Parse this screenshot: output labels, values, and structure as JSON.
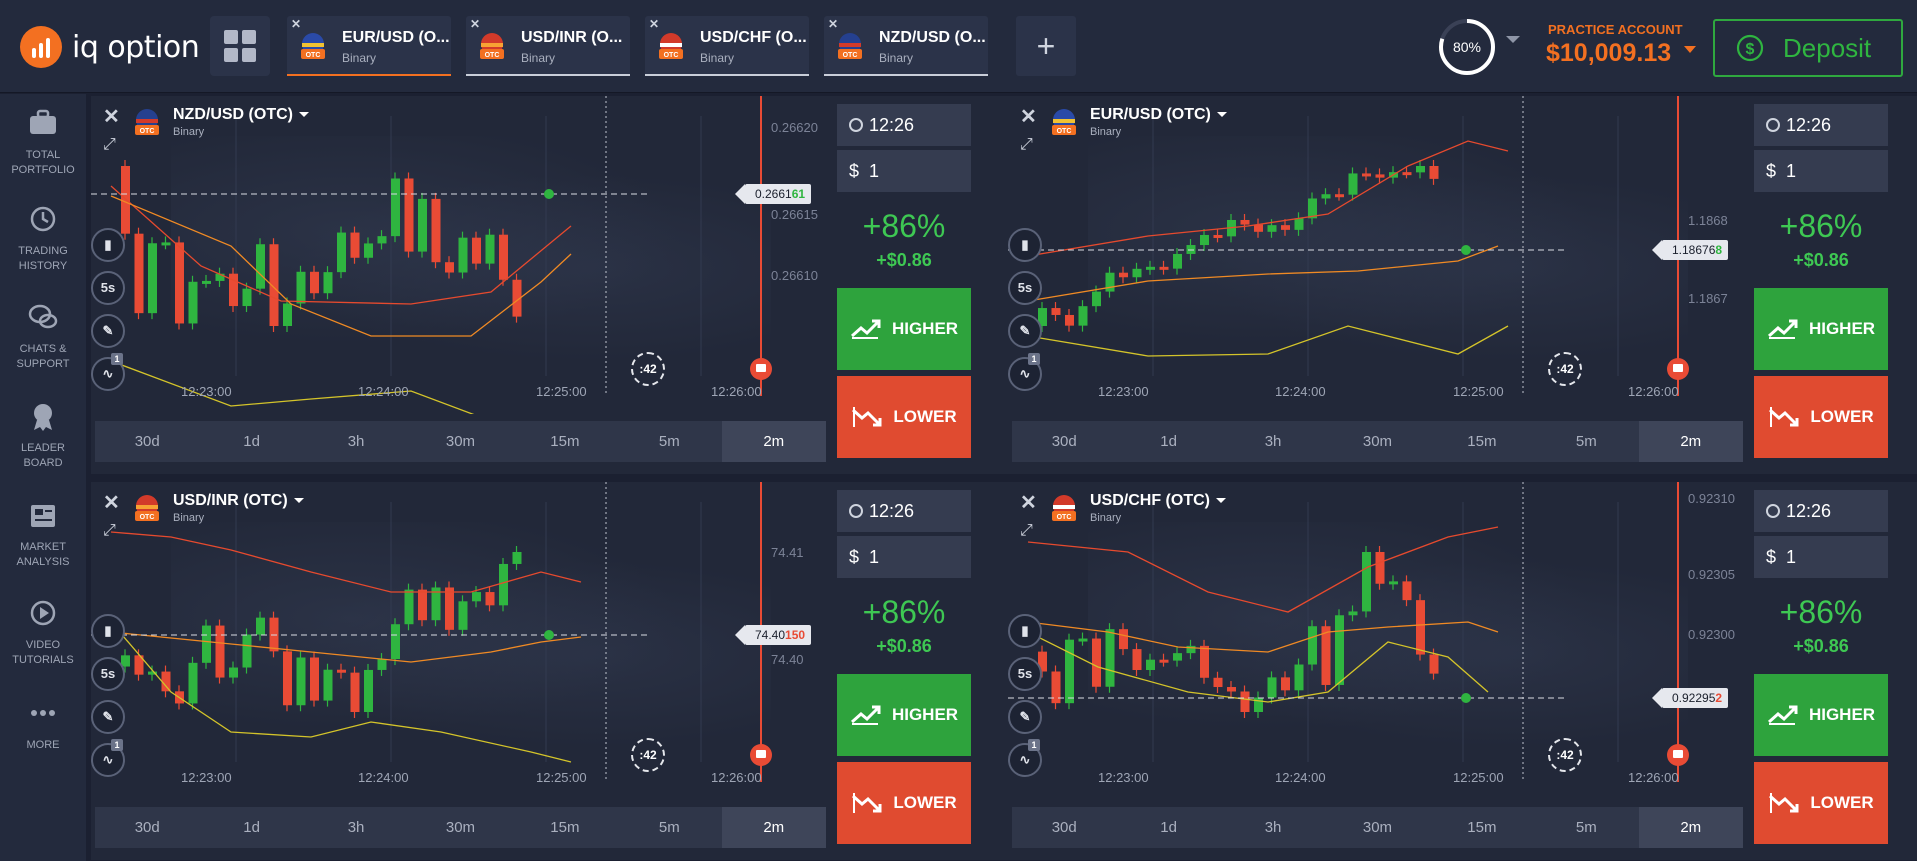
{
  "brand": {
    "name": "iq option"
  },
  "tabs": [
    {
      "title": "EUR/USD (O...",
      "type": "Binary",
      "active": true
    },
    {
      "title": "USD/INR (O...",
      "type": "Binary",
      "active": false
    },
    {
      "title": "USD/CHF (O...",
      "type": "Binary",
      "active": false
    },
    {
      "title": "NZD/USD (O...",
      "type": "Binary",
      "active": false
    }
  ],
  "header": {
    "gauge_value": "80%",
    "account_label": "PRACTICE ACCOUNT",
    "balance": "$10,009.13",
    "deposit_label": "Deposit"
  },
  "sidebar": [
    {
      "line1": "TOTAL",
      "line2": "PORTFOLIO",
      "icon": "briefcase-icon"
    },
    {
      "line1": "TRADING",
      "line2": "HISTORY",
      "icon": "history-icon"
    },
    {
      "line1": "CHATS &",
      "line2": "SUPPORT",
      "icon": "chat-icon"
    },
    {
      "line1": "LEADER",
      "line2": "BOARD",
      "icon": "medal-icon"
    },
    {
      "line1": "MARKET",
      "line2": "ANALYSIS",
      "icon": "newspaper-icon"
    },
    {
      "line1": "VIDEO",
      "line2": "TUTORIALS",
      "icon": "play-icon"
    },
    {
      "line1": "MORE",
      "line2": "",
      "icon": "dots-icon"
    }
  ],
  "timeframes": [
    "30d",
    "1d",
    "3h",
    "30m",
    "15m",
    "5m",
    "2m"
  ],
  "panels": [
    {
      "asset": "NZD/USD (OTC)",
      "type": "Binary",
      "price_main": "0.2661",
      "price_tail": "61",
      "tail_color": "g",
      "y_labels": [
        "0.26620",
        "0.26615",
        "0.26610"
      ],
      "x_labels": [
        "12:23:00",
        "12:24:00",
        "12:25:00",
        "12:26:00"
      ],
      "timer": ":42",
      "expiry": "12:26",
      "amount": "1",
      "profit_pct": "+86%",
      "profit_amt": "+$0.86",
      "higher": "HIGHER",
      "lower": "LOWER",
      "active_tf": "2m",
      "candle_tool": "5s",
      "tool_badge": "1"
    },
    {
      "asset": "EUR/USD (OTC)",
      "type": "Binary",
      "price_main": "1.18676",
      "price_tail": "8",
      "tail_color": "g",
      "y_labels": [
        "1.1868",
        "1.1867"
      ],
      "x_labels": [
        "12:23:00",
        "12:24:00",
        "12:25:00",
        "12:26:00"
      ],
      "timer": ":42",
      "expiry": "12:26",
      "amount": "1",
      "profit_pct": "+86%",
      "profit_amt": "+$0.86",
      "higher": "HIGHER",
      "lower": "LOWER",
      "active_tf": "2m",
      "candle_tool": "5s",
      "tool_badge": "1"
    },
    {
      "asset": "USD/INR (OTC)",
      "type": "Binary",
      "price_main": "74.40",
      "price_tail": "150",
      "tail_color": "r",
      "y_labels": [
        "74.41",
        "74.40"
      ],
      "x_labels": [
        "12:23:00",
        "12:24:00",
        "12:25:00",
        "12:26:00"
      ],
      "timer": ":42",
      "expiry": "12:26",
      "amount": "1",
      "profit_pct": "+86%",
      "profit_amt": "+$0.86",
      "higher": "HIGHER",
      "lower": "LOWER",
      "active_tf": "2m",
      "candle_tool": "5s",
      "tool_badge": "1"
    },
    {
      "asset": "USD/CHF (OTC)",
      "type": "Binary",
      "price_main": "0.92295",
      "price_tail": "2",
      "tail_color": "r",
      "y_labels": [
        "0.92310",
        "0.92305",
        "0.92300"
      ],
      "x_labels": [
        "12:23:00",
        "12:24:00",
        "12:25:00",
        "12:26:00"
      ],
      "timer": ":42",
      "expiry": "12:26",
      "amount": "1",
      "profit_pct": "+86%",
      "profit_amt": "+$0.86",
      "higher": "HIGHER",
      "lower": "LOWER",
      "active_tf": "2m",
      "candle_tool": "5s",
      "tool_badge": "1"
    }
  ],
  "colors": {
    "up": "#2fb540",
    "down": "#e94b35",
    "accent": "#f37021",
    "band_upper": "#e64a2e",
    "band_mid": "#f08a24",
    "band_lower": "#d4c42a"
  }
}
